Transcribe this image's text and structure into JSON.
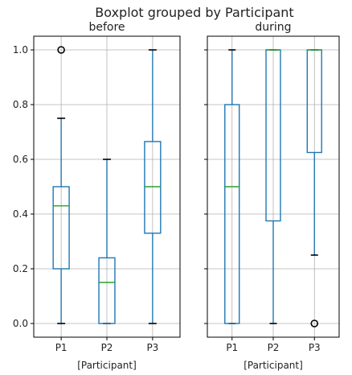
{
  "chart_data": {
    "type": "boxplot",
    "suptitle": "Boxplot grouped by Participant",
    "panels": [
      {
        "title": "before",
        "xlabel": "[Participant]",
        "categories": [
          "P1",
          "P2",
          "P3"
        ],
        "boxes": [
          {
            "whisker_low": 0.0,
            "q1": 0.2,
            "median": 0.43,
            "q3": 0.5,
            "whisker_high": 0.75,
            "outliers": [
              1.0
            ]
          },
          {
            "whisker_low": 0.0,
            "q1": 0.0,
            "median": 0.15,
            "q3": 0.24,
            "whisker_high": 0.6,
            "outliers": []
          },
          {
            "whisker_low": 0.0,
            "q1": 0.33,
            "median": 0.5,
            "q3": 0.665,
            "whisker_high": 1.0,
            "outliers": []
          }
        ]
      },
      {
        "title": "during",
        "xlabel": "[Participant]",
        "categories": [
          "P1",
          "P2",
          "P3"
        ],
        "boxes": [
          {
            "whisker_low": 0.0,
            "q1": 0.0,
            "median": 0.5,
            "q3": 0.8,
            "whisker_high": 1.0,
            "outliers": []
          },
          {
            "whisker_low": 0.0,
            "q1": 0.375,
            "median": 1.0,
            "q3": 1.0,
            "whisker_high": 1.0,
            "outliers": []
          },
          {
            "whisker_low": 0.25,
            "q1": 0.625,
            "median": 1.0,
            "q3": 1.0,
            "whisker_high": 1.0,
            "outliers": [
              0.0
            ]
          }
        ]
      }
    ],
    "y_ticks": [
      "0.0",
      "0.2",
      "0.4",
      "0.6",
      "0.8",
      "1.0"
    ],
    "ylim": [
      -0.05,
      1.05
    ],
    "grid": true,
    "sharey": true,
    "colors": {
      "box": "#1f77b4",
      "median": "#2ca02c",
      "whisker_cap": "#000000",
      "grid": "#b0b0b0",
      "outlier": "#000000"
    }
  }
}
